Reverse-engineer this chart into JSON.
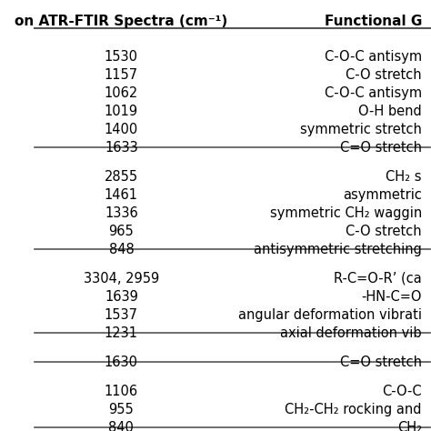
{
  "col1_header": "on ATR-FTIR Spectra (cm⁻¹)",
  "col2_header": "Functional G",
  "groups": [
    {
      "rows": [
        [
          "1530",
          "C-O-C antisym"
        ],
        [
          "1157",
          "C-O stretch"
        ],
        [
          "1062",
          "C-O-C antisym"
        ],
        [
          "1019",
          "O-H bend"
        ],
        [
          "1400",
          "symmetric stretch"
        ],
        [
          "1633",
          "C=O stretch"
        ]
      ]
    },
    {
      "rows": [
        [
          "2855",
          "CH₂ s"
        ],
        [
          "1461",
          "asymmetric"
        ],
        [
          "1336",
          "symmetric CH₂ waggin"
        ],
        [
          "965",
          "C-O stretch"
        ],
        [
          "848",
          "antisymmetric stretching"
        ]
      ]
    },
    {
      "rows": [
        [
          "3304, 2959",
          "R-C=O-R’ (ca"
        ],
        [
          "1639",
          "-HN-C=O"
        ],
        [
          "1537",
          "angular deformation vibrati"
        ],
        [
          "1231",
          "axial deformation vib"
        ]
      ]
    },
    {
      "rows": [
        [
          "1630",
          "C=O stretch"
        ]
      ]
    },
    {
      "rows": [
        [
          "1106",
          "C-O-C"
        ],
        [
          "955",
          "CH₂-CH₂ rocking and"
        ],
        [
          "840",
          "CH₂"
        ]
      ]
    }
  ],
  "bg_color": "#ffffff",
  "text_color": "#000000",
  "header_fontsize": 11,
  "body_fontsize": 10.5,
  "line_color": "#555555"
}
